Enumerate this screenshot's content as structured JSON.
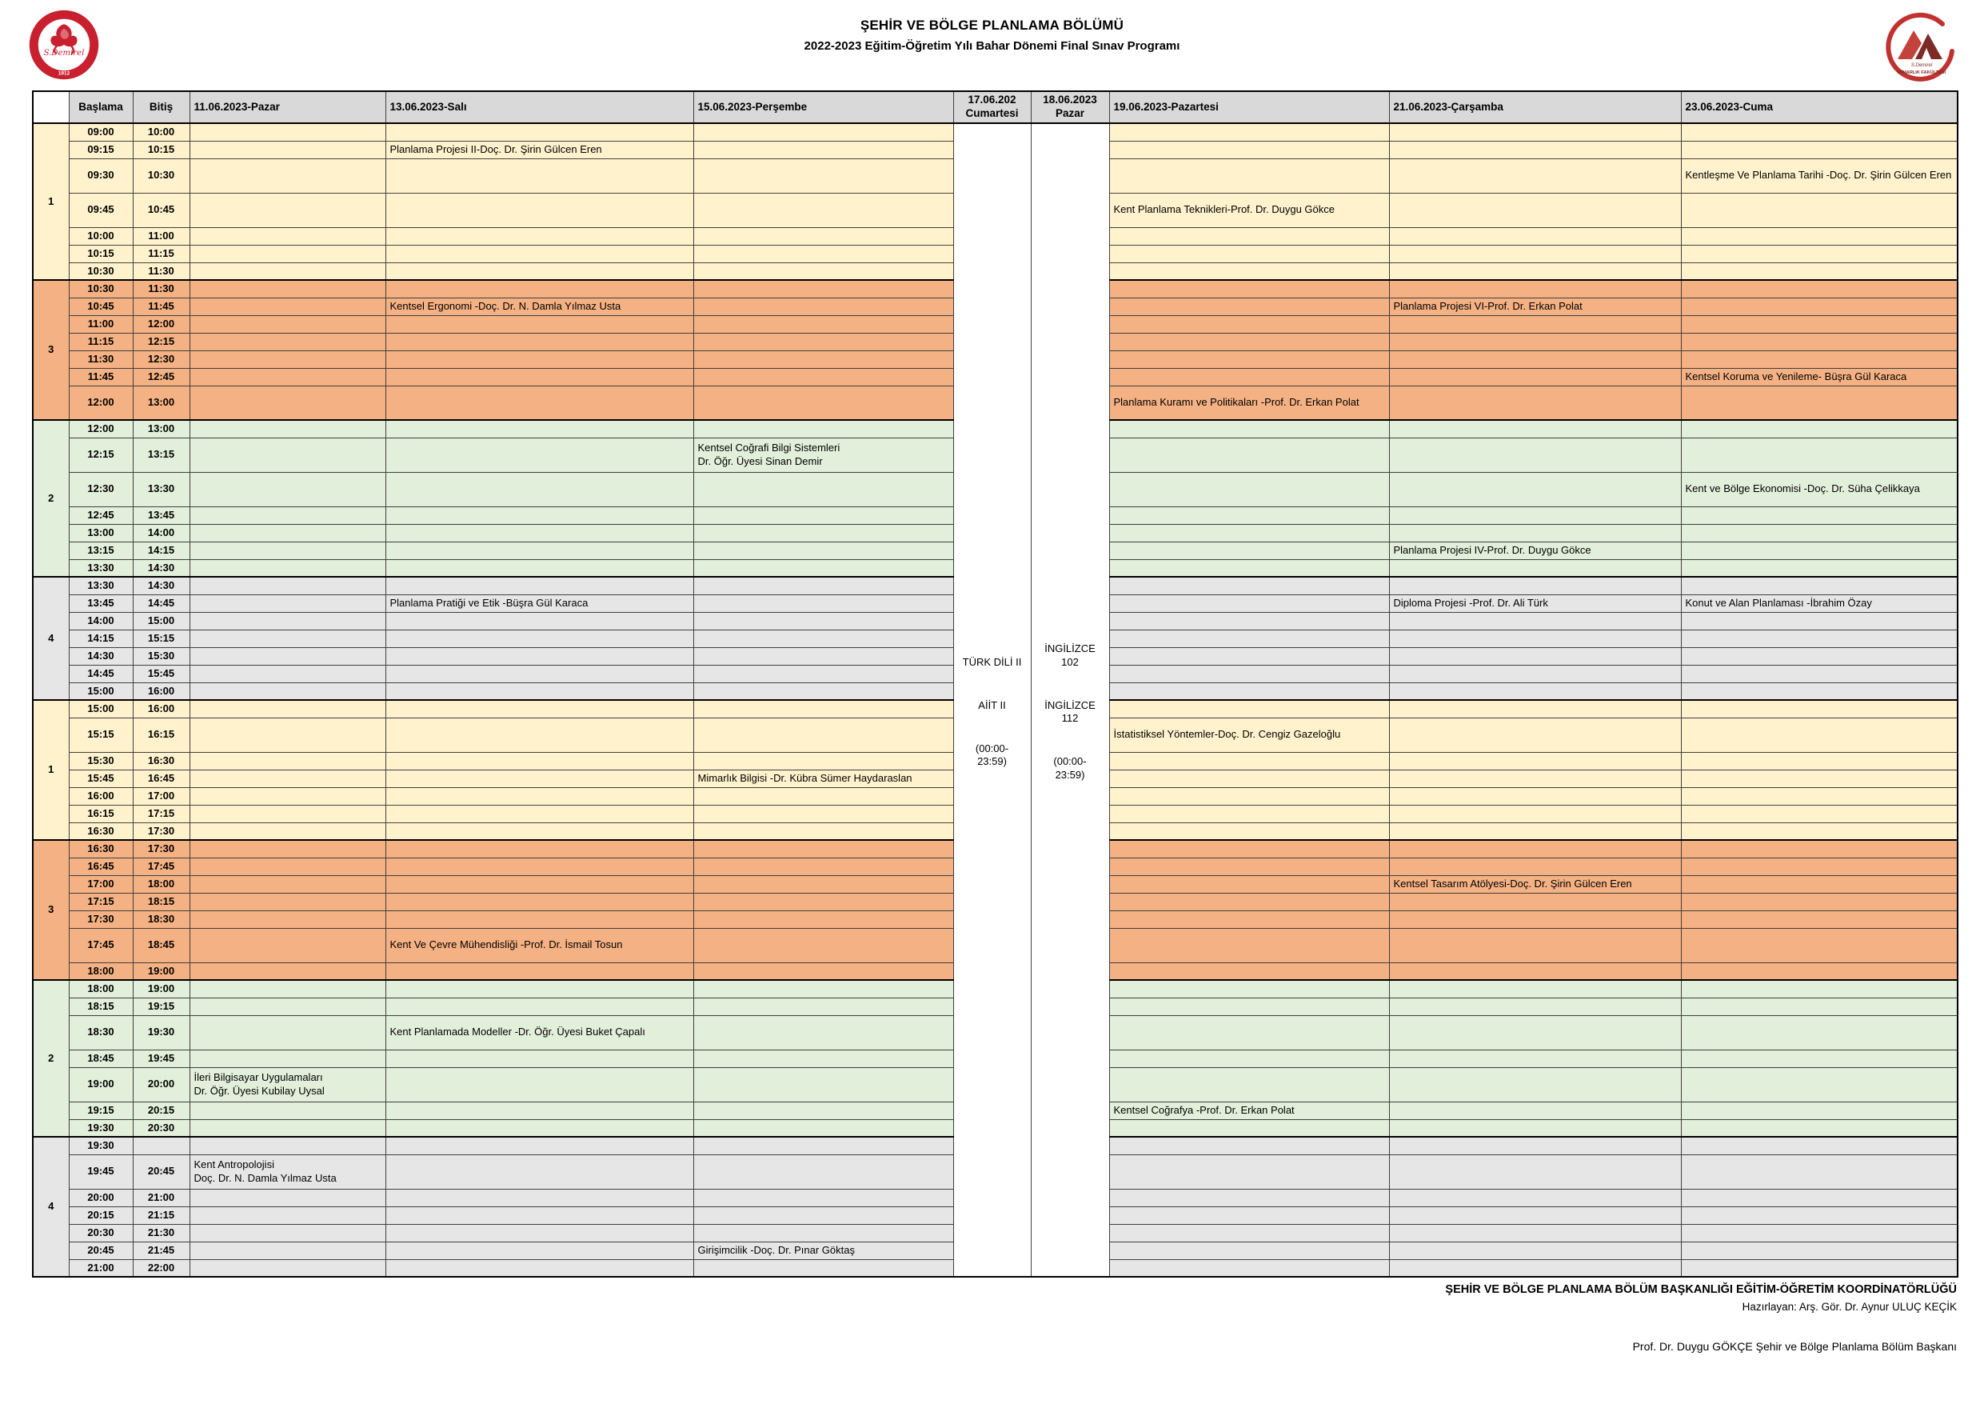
{
  "page": {
    "title_line1": "ŞEHİR VE BÖLGE PLANLAMA BÖLÜMÜ",
    "title_line2": "2022-2023 Eğitim-Öğretim Yılı Bahar Dönemi Final Sınav Programı"
  },
  "logos": {
    "left": "sdu-university-rose-emblem",
    "left_text": "S.Demirel",
    "left_year": "1912",
    "right": "architecture-faculty-emblem",
    "right_text": "MİMARLIK FAKÜLTESİ"
  },
  "table": {
    "corner": "",
    "col_start": "Başlama",
    "col_end": "Bitiş",
    "day_headers": [
      "11.06.2023-Pazar",
      "13.06.2023-Salı",
      "15.06.2023-Perşembe",
      "19.06.2023-Pazartesi",
      "21.06.2023-Çarşamba",
      "23.06.2023-Cuma"
    ],
    "weekend_headers": [
      {
        "date": "17.06.202",
        "day": "Cumartesi"
      },
      {
        "date": "18.06.2023",
        "day": "Pazar"
      }
    ],
    "weekend_body": {
      "saturday": [
        "TÜRK DİLİ II",
        "AİİT II",
        "(00:00-\n23:59)"
      ],
      "sunday": [
        "İNGİLİZCE\n102",
        "İNGİLİZCE\n112",
        "(00:00-\n23:59)"
      ]
    },
    "colors": {
      "yellow": "#FFF2CC",
      "orange": "#F4B183",
      "green": "#E2EFDA",
      "gray": "#E7E6E6",
      "header": "#D9D9D9",
      "accent_red": "#C8202F"
    },
    "sections": [
      {
        "group": "1",
        "color": "yellow",
        "rows": [
          {
            "start": "09:00",
            "end": "10:00",
            "cells": {}
          },
          {
            "start": "09:15",
            "end": "10:15",
            "cells": {
              "sali": "Planlama Projesi II-Doç. Dr. Şirin Gülcen Eren"
            }
          },
          {
            "start": "09:30",
            "end": "10:30",
            "tall": true,
            "cells": {
              "cuma": "Kentleşme Ve Planlama Tarihi -Doç. Dr. Şirin Gülcen Eren"
            }
          },
          {
            "start": "09:45",
            "end": "10:45",
            "tall": true,
            "cells": {
              "pazartesi": "Kent Planlama Teknikleri-Prof. Dr. Duygu Gökce"
            }
          },
          {
            "start": "10:00",
            "end": "11:00",
            "cells": {}
          },
          {
            "start": "10:15",
            "end": "11:15",
            "cells": {}
          },
          {
            "start": "10:30",
            "end": "11:30",
            "cells": {}
          }
        ]
      },
      {
        "group": "3",
        "color": "orange",
        "rows": [
          {
            "start": "10:30",
            "end": "11:30",
            "cells": {}
          },
          {
            "start": "10:45",
            "end": "11:45",
            "cells": {
              "sali": "Kentsel Ergonomi -Doç. Dr. N. Damla Yılmaz Usta",
              "carsamba": "Planlama Projesi VI-Prof. Dr. Erkan Polat"
            }
          },
          {
            "start": "11:00",
            "end": "12:00",
            "cells": {}
          },
          {
            "start": "11:15",
            "end": "12:15",
            "cells": {}
          },
          {
            "start": "11:30",
            "end": "12:30",
            "cells": {}
          },
          {
            "start": "11:45",
            "end": "12:45",
            "cells": {
              "cuma": "Kentsel Koruma ve Yenileme- Büşra Gül Karaca"
            }
          },
          {
            "start": "12:00",
            "end": "13:00",
            "tall": true,
            "cells": {
              "pazartesi": "Planlama Kuramı ve Politikaları -Prof. Dr. Erkan Polat"
            }
          }
        ]
      },
      {
        "group": "2",
        "color": "green",
        "rows": [
          {
            "start": "12:00",
            "end": "13:00",
            "cells": {}
          },
          {
            "start": "12:15",
            "end": "13:15",
            "tall": true,
            "cells": {
              "persembe": "Kentsel Coğrafi Bilgi Sistemleri\nDr. Öğr. Üyesi Sinan Demir"
            }
          },
          {
            "start": "12:30",
            "end": "13:30",
            "tall": true,
            "cells": {
              "cuma": "Kent ve Bölge Ekonomisi -Doç. Dr. Süha Çelikkaya"
            }
          },
          {
            "start": "12:45",
            "end": "13:45",
            "cells": {}
          },
          {
            "start": "13:00",
            "end": "14:00",
            "cells": {}
          },
          {
            "start": "13:15",
            "end": "14:15",
            "cells": {
              "carsamba": "Planlama Projesi IV-Prof. Dr. Duygu Gökce"
            }
          },
          {
            "start": "13:30",
            "end": "14:30",
            "cells": {}
          }
        ]
      },
      {
        "group": "4",
        "color": "gray",
        "rows": [
          {
            "start": "13:30",
            "end": "14:30",
            "cells": {}
          },
          {
            "start": "13:45",
            "end": "14:45",
            "cells": {
              "sali": "Planlama Pratiği ve Etik -Büşra Gül Karaca",
              "carsamba": "Diploma Projesi -Prof. Dr. Ali Türk",
              "cuma": "Konut ve Alan Planlaması -İbrahim Özay"
            }
          },
          {
            "start": "14:00",
            "end": "15:00",
            "cells": {}
          },
          {
            "start": "14:15",
            "end": "15:15",
            "cells": {}
          },
          {
            "start": "14:30",
            "end": "15:30",
            "cells": {}
          },
          {
            "start": "14:45",
            "end": "15:45",
            "cells": {}
          },
          {
            "start": "15:00",
            "end": "16:00",
            "cells": {}
          }
        ]
      },
      {
        "group": "1",
        "color": "yellow",
        "rows": [
          {
            "start": "15:00",
            "end": "16:00",
            "cells": {}
          },
          {
            "start": "15:15",
            "end": "16:15",
            "tall": true,
            "cells": {
              "pazartesi": "İstatistiksel Yöntemler-Doç. Dr. Cengiz Gazeloğlu"
            }
          },
          {
            "start": "15:30",
            "end": "16:30",
            "cells": {}
          },
          {
            "start": "15:45",
            "end": "16:45",
            "cells": {
              "persembe": "Mimarlık Bilgisi -Dr. Kübra Sümer Haydaraslan"
            }
          },
          {
            "start": "16:00",
            "end": "17:00",
            "cells": {}
          },
          {
            "start": "16:15",
            "end": "17:15",
            "cells": {}
          },
          {
            "start": "16:30",
            "end": "17:30",
            "cells": {}
          }
        ]
      },
      {
        "group": "3",
        "color": "orange",
        "rows": [
          {
            "start": "16:30",
            "end": "17:30",
            "cells": {}
          },
          {
            "start": "16:45",
            "end": "17:45",
            "cells": {}
          },
          {
            "start": "17:00",
            "end": "18:00",
            "cells": {
              "carsamba": "Kentsel Tasarım Atölyesi-Doç. Dr. Şirin Gülcen Eren"
            }
          },
          {
            "start": "17:15",
            "end": "18:15",
            "cells": {}
          },
          {
            "start": "17:30",
            "end": "18:30",
            "cells": {}
          },
          {
            "start": "17:45",
            "end": "18:45",
            "tall": true,
            "cells": {
              "sali": "Kent Ve Çevre Mühendisliği -Prof. Dr. İsmail Tosun"
            }
          },
          {
            "start": "18:00",
            "end": "19:00",
            "cells": {}
          }
        ]
      },
      {
        "group": "2",
        "color": "green",
        "rows": [
          {
            "start": "18:00",
            "end": "19:00",
            "cells": {}
          },
          {
            "start": "18:15",
            "end": "19:15",
            "cells": {}
          },
          {
            "start": "18:30",
            "end": "19:30",
            "tall": true,
            "cells": {
              "sali": "Kent Planlamada Modeller -Dr. Öğr. Üyesi Buket Çapalı"
            }
          },
          {
            "start": "18:45",
            "end": "19:45",
            "cells": {}
          },
          {
            "start": "19:00",
            "end": "20:00",
            "tall": true,
            "cells": {
              "pazar": "İleri Bilgisayar Uygulamaları\nDr. Öğr. Üyesi Kubilay Uysal"
            }
          },
          {
            "start": "19:15",
            "end": "20:15",
            "cells": {
              "pazartesi": "Kentsel Coğrafya -Prof. Dr. Erkan Polat"
            }
          },
          {
            "start": "19:30",
            "end": "20:30",
            "cells": {}
          }
        ]
      },
      {
        "group": "4",
        "color": "gray",
        "rows": [
          {
            "start": "19:30",
            "end": "",
            "cells": {}
          },
          {
            "start": "19:45",
            "end": "20:45",
            "tall": true,
            "cells": {
              "pazar": "Kent Antropolojisi\nDoç. Dr. N. Damla Yılmaz Usta"
            }
          },
          {
            "start": "20:00",
            "end": "21:00",
            "cells": {}
          },
          {
            "start": "20:15",
            "end": "21:15",
            "cells": {}
          },
          {
            "start": "20:30",
            "end": "21:30",
            "cells": {}
          },
          {
            "start": "20:45",
            "end": "21:45",
            "cells": {
              "persembe": "Girişimcilik -Doç. Dr. Pınar Göktaş"
            }
          },
          {
            "start": "21:00",
            "end": "22:00",
            "cells": {}
          }
        ]
      }
    ]
  },
  "footer": {
    "line1": "ŞEHİR VE BÖLGE PLANLAMA BÖLÜM BAŞKANLIĞI EĞİTİM-ÖĞRETİM KOORDİNATÖRLÜĞÜ",
    "line2": "Hazırlayan: Arş. Gör. Dr. Aynur ULUÇ KEÇİK",
    "line3": "Prof. Dr. Duygu GÖKÇE Şehir ve Bölge Planlama Bölüm Başkanı"
  }
}
